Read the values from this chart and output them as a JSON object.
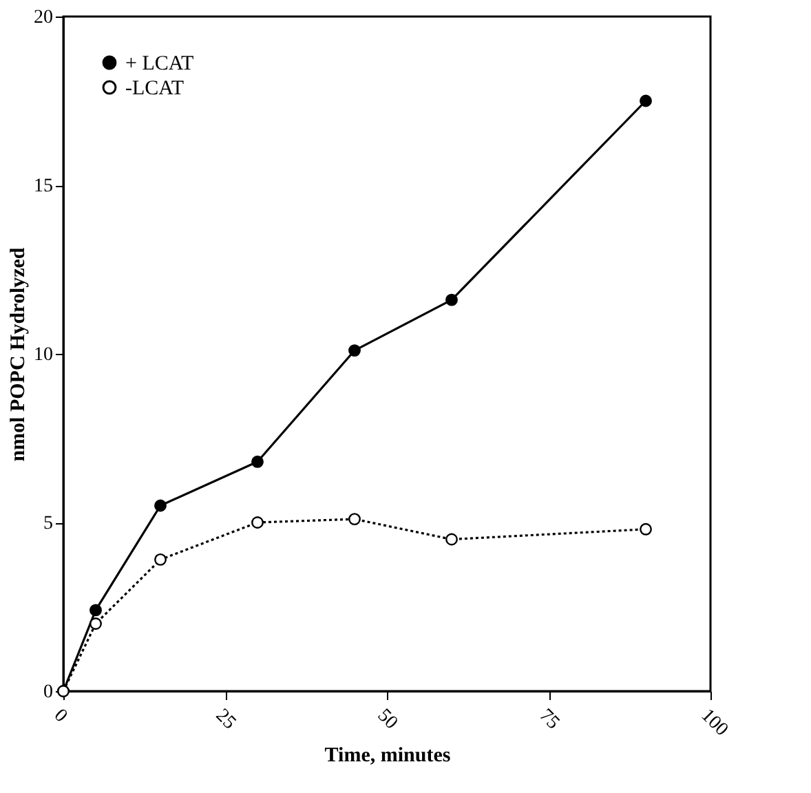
{
  "chart_data": {
    "type": "line",
    "xlabel": "Time, minutes",
    "ylabel": "nmol POPC Hydrolyzed",
    "x": [
      0,
      5,
      15,
      30,
      45,
      60,
      90
    ],
    "series": [
      {
        "name": "+ LCAT",
        "color": "#000000",
        "values": [
          0,
          2.4,
          5.5,
          6.8,
          10.1,
          11.6,
          17.5
        ],
        "marker": "circle",
        "line_style": "solid"
      },
      {
        "name": "-LCAT",
        "color": "#000000",
        "values": [
          0,
          2.0,
          3.9,
          5.0,
          5.1,
          4.5,
          4.8
        ],
        "marker": "circle",
        "line_style": "dotted"
      }
    ],
    "xlim": [
      0,
      100
    ],
    "xticks": [
      0,
      25,
      50,
      75,
      100
    ],
    "ylim": [
      0,
      20
    ],
    "yticks": [
      0,
      5,
      10,
      15,
      20
    ],
    "grid": false,
    "legend": "top left"
  }
}
